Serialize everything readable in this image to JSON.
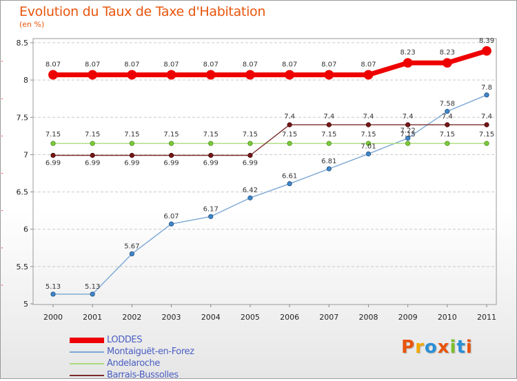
{
  "header": {
    "title": "Evolution du Taux de Taxe d'Habitation",
    "unit": "(en %)"
  },
  "brand": {
    "text": "Proxiti",
    "colors": [
      "#e8540c",
      "#f2a900",
      "#2b8fd6",
      "#e8540c",
      "#7bbf2a",
      "#2b8fd6",
      "#e8540c"
    ]
  },
  "chart_data": {
    "type": "line",
    "title": "Evolution du Taux de Taxe d'Habitation",
    "ylabel": "(en %)",
    "xlabel": "",
    "x": [
      "2000",
      "2001",
      "2002",
      "2003",
      "2004",
      "2005",
      "2006",
      "2007",
      "2008",
      "2009",
      "2010",
      "2011"
    ],
    "ylim": [
      5,
      8.5
    ],
    "yticks": [
      "5",
      "5.5",
      "6",
      "6.5",
      "7",
      "7.5",
      "8",
      "8.5"
    ],
    "grid": "horizontal dashed",
    "legend_position": "bottom-left",
    "series": [
      {
        "name": "LODDES",
        "color": "#ee0000",
        "values": [
          8.07,
          8.07,
          8.07,
          8.07,
          8.07,
          8.07,
          8.07,
          8.07,
          8.07,
          8.23,
          8.23,
          8.39
        ],
        "labels": [
          "8.07",
          "8.07",
          "8.07",
          "8.07",
          "8.07",
          "8.07",
          "8.07",
          "8.07",
          "8.07",
          "8.23",
          "8.23",
          "8.39"
        ]
      },
      {
        "name": "Montaiguët-en-Forez",
        "color": "#7aa6d4",
        "values": [
          5.13,
          5.13,
          5.67,
          6.07,
          6.17,
          6.42,
          6.61,
          6.81,
          7.01,
          7.22,
          7.58,
          7.8
        ],
        "labels": [
          "5.13",
          "5.13",
          "5.67",
          "6.07",
          "6.17",
          "6.42",
          "6.61",
          "6.81",
          "7.01",
          "7.22",
          "7.58",
          "7.8"
        ]
      },
      {
        "name": "Andelaroche",
        "color": "#a8dc7a",
        "values": [
          7.15,
          7.15,
          7.15,
          7.15,
          7.15,
          7.15,
          7.15,
          7.15,
          7.15,
          7.15,
          7.15,
          7.15
        ],
        "labels": [
          "7.15",
          "7.15",
          "7.15",
          "7.15",
          "7.15",
          "7.15",
          "7.15",
          "7.15",
          "7.15",
          "7.15",
          "7.15",
          "7.15"
        ]
      },
      {
        "name": "Barrais-Bussolles",
        "color": "#7a2a2a",
        "values": [
          6.99,
          6.99,
          6.99,
          6.99,
          6.99,
          6.99,
          7.4,
          7.4,
          7.4,
          7.4,
          7.4,
          7.4
        ],
        "labels": [
          "6.99",
          "6.99",
          "6.99",
          "6.99",
          "6.99",
          "6.99",
          "7.4",
          "7.4",
          "7.4",
          "7.4",
          "7.4",
          "7.4"
        ]
      }
    ]
  }
}
